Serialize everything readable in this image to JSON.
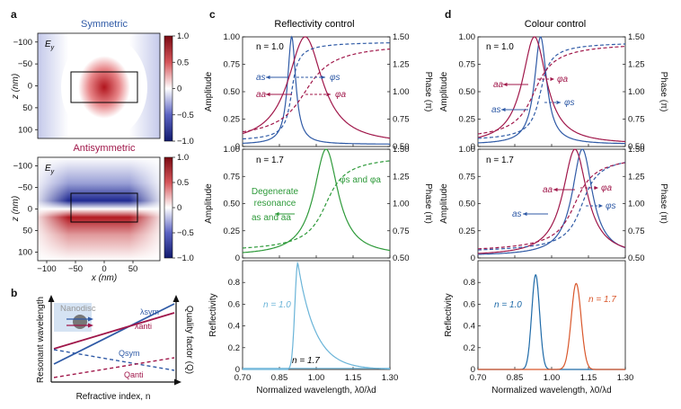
{
  "colors": {
    "blue": "#2f5aa6",
    "red": "#a0174a",
    "green": "#2e9a3a",
    "lightblue": "#6ab4d8",
    "orange": "#d9572b",
    "darkblue": "#1e6aa8"
  },
  "panel_a": {
    "label": "a",
    "top": {
      "title": "Symmetric",
      "field": "E",
      "field_sub": "y"
    },
    "bottom": {
      "title": "Antisymmetric",
      "field": "E",
      "field_sub": "y"
    },
    "ylabel": "z (nm)",
    "xlabel": "x (nm)",
    "yticks": [
      "−100",
      "−50",
      "0",
      "50",
      "100"
    ],
    "xticks": [
      "−50",
      "0",
      "50"
    ],
    "xtick_first": "−100",
    "colorbar": [
      "1.0",
      "0.5",
      "0",
      "−0.5",
      "−1.0"
    ]
  },
  "panel_b": {
    "label": "b",
    "inset": "Nanodisc",
    "ylabel": "Resonant wavelength",
    "ylabel2": "Quality factor (Q)",
    "xlabel": "Refractive index, n",
    "lam_sym": "λsym",
    "lam_anti": "λanti",
    "q_sym": "Qsym",
    "q_anti": "Qanti"
  },
  "panel_c": {
    "label": "c",
    "title": "Reflectivity control",
    "top_n": "n = 1.0",
    "mid_n": "n = 1.7",
    "a_s": "as",
    "a_a": "aa",
    "phi_s": "φs",
    "phi_a": "φa",
    "degenerate": "Degenerate",
    "resonance": "resonance",
    "phis_and_phia": "φs and φa",
    "as_and_aa": "as and aa",
    "bot_n1": "n = 1.0",
    "bot_n2": "n = 1.7"
  },
  "panel_d": {
    "label": "d",
    "title": "Colour control",
    "top_n": "n = 1.0",
    "mid_n": "n = 1.7",
    "a_s": "as",
    "a_a": "aa",
    "phi_s": "φs",
    "phi_a": "φa",
    "bot_n1": "n = 1.0",
    "bot_n2": "n = 1.7"
  },
  "axes": {
    "amp_label": "Amplitude",
    "phase_label": "Phase (π)",
    "refl_label": "Reflectivity",
    "xlabel": "Normalized wavelength, λ0/λd",
    "amp_ticks": [
      "1.00",
      "0.75",
      "0.50",
      "0.25",
      "0"
    ],
    "phase_ticks": [
      "1.50",
      "1.25",
      "1.00",
      "0.75",
      "0.50"
    ],
    "refl_ticks": [
      "0.8",
      "0.6",
      "0.4",
      "0.2",
      "0"
    ],
    "x_ticks": [
      "0.70",
      "0.85",
      "1.00",
      "1.15",
      "1.30"
    ]
  },
  "chart_data": [
    {
      "type": "line",
      "panel": "c-top",
      "title": "Reflectivity control",
      "xlim": [
        0.7,
        1.3
      ],
      "ylim": [
        0,
        1
      ],
      "y2lim": [
        0.5,
        1.5
      ],
      "series": [
        {
          "name": "as",
          "kind": "lorentzian",
          "center": 0.9,
          "width": 0.02,
          "peak": 1.0
        },
        {
          "name": "aa",
          "kind": "lorentzian",
          "center": 0.955,
          "width": 0.085,
          "peak": 1.0
        },
        {
          "name": "φs",
          "kind": "phase",
          "center": 0.9,
          "width": 0.02
        },
        {
          "name": "φa",
          "kind": "phase",
          "center": 0.955,
          "width": 0.085
        }
      ]
    },
    {
      "type": "line",
      "panel": "c-mid",
      "xlim": [
        0.7,
        1.3
      ],
      "ylim": [
        0,
        1
      ],
      "y2lim": [
        0.5,
        1.5
      ],
      "series": [
        {
          "name": "as and aa",
          "kind": "lorentzian",
          "center": 1.04,
          "width": 0.06,
          "peak": 1.0
        },
        {
          "name": "φs and φa",
          "kind": "phase",
          "center": 1.04,
          "width": 0.06
        }
      ]
    },
    {
      "type": "line",
      "panel": "c-bot",
      "xlim": [
        0.7,
        1.3
      ],
      "ylim": [
        0,
        1
      ],
      "series": [
        {
          "name": "n = 1.0",
          "kind": "reflectivity",
          "center": 0.925,
          "peak": 0.98,
          "x_start": 0.885,
          "x_end": 1.3
        },
        {
          "name": "n = 1.7",
          "kind": "reflectivity",
          "peak": 0.01
        }
      ]
    },
    {
      "type": "line",
      "panel": "d-top",
      "title": "Colour control",
      "xlim": [
        0.7,
        1.3
      ],
      "ylim": [
        0,
        1
      ],
      "y2lim": [
        0.5,
        1.5
      ],
      "series": [
        {
          "name": "as",
          "kind": "lorentzian",
          "center": 0.955,
          "width": 0.03,
          "peak": 1.0
        },
        {
          "name": "aa",
          "kind": "lorentzian",
          "center": 0.93,
          "width": 0.06,
          "peak": 1.0
        },
        {
          "name": "φs",
          "kind": "phase",
          "center": 0.955,
          "width": 0.03
        },
        {
          "name": "φa",
          "kind": "phase",
          "center": 0.93,
          "width": 0.06
        }
      ]
    },
    {
      "type": "line",
      "panel": "d-mid",
      "xlim": [
        0.7,
        1.3
      ],
      "ylim": [
        0,
        1
      ],
      "y2lim": [
        0.5,
        1.5
      ],
      "series": [
        {
          "name": "as",
          "kind": "lorentzian",
          "center": 1.125,
          "width": 0.05,
          "peak": 1.0
        },
        {
          "name": "aa",
          "kind": "lorentzian",
          "center": 1.095,
          "width": 0.06,
          "peak": 1.0
        },
        {
          "name": "φs",
          "kind": "phase",
          "center": 1.125,
          "width": 0.05
        },
        {
          "name": "φa",
          "kind": "phase",
          "center": 1.095,
          "width": 0.06
        }
      ]
    },
    {
      "type": "line",
      "panel": "d-bot",
      "xlim": [
        0.7,
        1.3
      ],
      "ylim": [
        0,
        1
      ],
      "series": [
        {
          "name": "n = 1.0",
          "kind": "gauss",
          "center": 0.935,
          "peak": 0.87,
          "sigma": 0.016
        },
        {
          "name": "n = 1.7",
          "kind": "gauss",
          "center": 1.1,
          "peak": 0.79,
          "sigma": 0.02
        }
      ]
    }
  ]
}
